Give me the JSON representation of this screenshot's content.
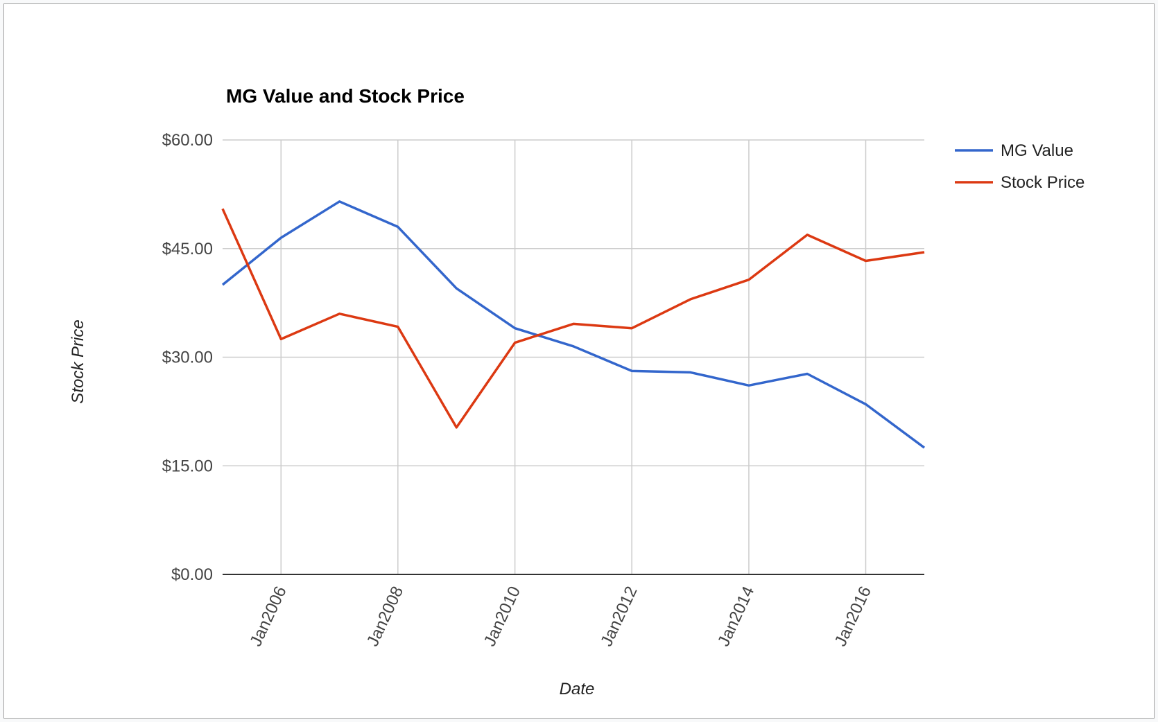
{
  "chart_data": {
    "type": "line",
    "title": "MG Value and Stock Price",
    "xlabel": "Date",
    "ylabel": "Stock Price",
    "x": [
      "2005-01-01",
      "2006-01-01",
      "2007-01-01",
      "2008-01-01",
      "2009-01-01",
      "2010-01-01",
      "2011-01-01",
      "2012-01-01",
      "2013-01-01",
      "2014-01-01",
      "2015-01-01",
      "2016-01-01",
      "2017-01-01"
    ],
    "x_ticks": [
      "Jan2006",
      "Jan2008",
      "Jan2010",
      "Jan2012",
      "Jan2014",
      "Jan2016"
    ],
    "x_tick_dates": [
      "2006-01-01",
      "2008-01-01",
      "2010-01-01",
      "2012-01-01",
      "2014-01-01",
      "2016-01-01"
    ],
    "xlim": [
      "2005-01-01",
      "2017-01-01"
    ],
    "y_ticks": [
      "$0.00",
      "$15.00",
      "$30.00",
      "$45.00",
      "$60.00"
    ],
    "y_tick_values": [
      0,
      15,
      30,
      45,
      60
    ],
    "ylim": [
      0,
      60
    ],
    "grid": true,
    "legend_position": "right",
    "series": [
      {
        "name": "MG Value",
        "color": "#3366cc",
        "values": [
          40.0,
          46.5,
          51.5,
          48.0,
          39.5,
          34.0,
          31.5,
          28.1,
          27.9,
          26.1,
          27.7,
          23.5,
          17.5
        ]
      },
      {
        "name": "Stock Price",
        "color": "#dc3912",
        "values": [
          50.5,
          32.5,
          36.0,
          34.2,
          20.3,
          32.0,
          34.6,
          34.0,
          38.0,
          40.7,
          46.9,
          43.3,
          44.5
        ]
      }
    ]
  }
}
